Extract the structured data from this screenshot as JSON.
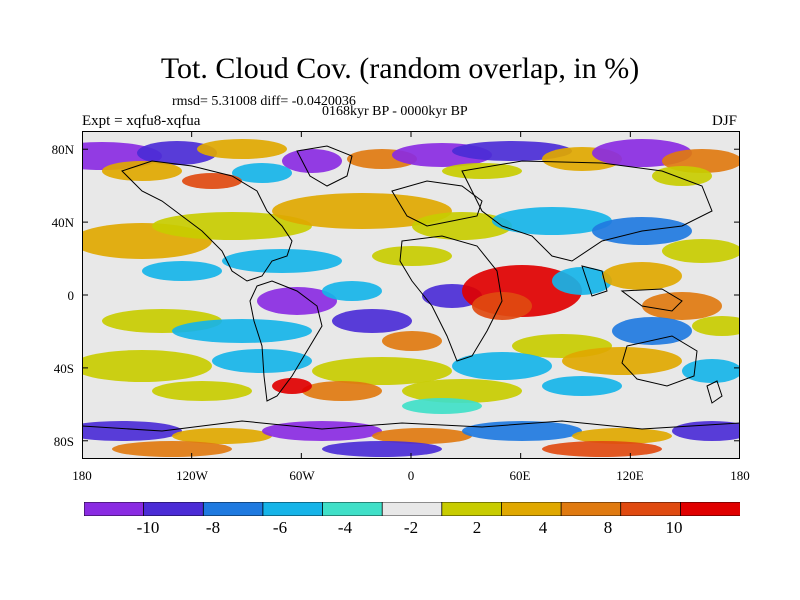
{
  "header": {
    "title": "Tot. Cloud Cov. (random overlap, in %)",
    "stats": "rmsd= 5.31008 diff= -0.0420036",
    "period": "0168kyr BP - 0000kyr BP",
    "experiment": "Expt = xqfu8-xqfua",
    "season": "DJF"
  },
  "map": {
    "lat_ticks": [
      "80N",
      "40N",
      "0",
      "40S",
      "80S"
    ],
    "lon_ticks": [
      "180",
      "120W",
      "60W",
      "0",
      "60E",
      "120E",
      "180"
    ],
    "colors_meaning": "anomaly field, blue/purple negative, red/orange positive"
  },
  "colorbar": {
    "colors": [
      "#8a2be2",
      "#4b2cd6",
      "#1f7ae0",
      "#16b4e8",
      "#40e0c8",
      "#e8e8e8",
      "#c8cc00",
      "#e0a800",
      "#e07a10",
      "#e04a10",
      "#e00000"
    ],
    "labels": [
      "-10",
      "-8",
      "-6",
      "-4",
      "-2",
      "2",
      "4",
      "8",
      "10"
    ]
  }
}
